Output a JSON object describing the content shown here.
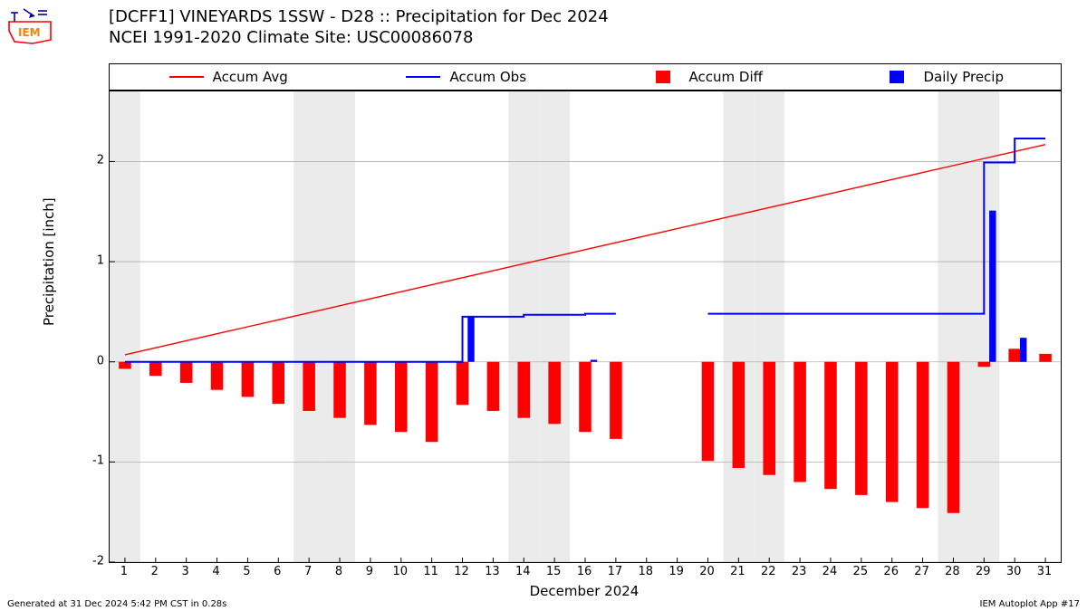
{
  "title_line1": "[DCFF1] VINEYARDS 1SSW - D28 :: Precipitation for Dec 2024",
  "title_line2": "NCEI 1991-2020 Climate Site: USC00086078",
  "y_label": "Precipitation [inch]",
  "x_label": "December 2024",
  "footer_left": "Generated at 31 Dec 2024 5:42 PM CST in 0.28s",
  "footer_right": "IEM Autoplot App #17",
  "legend": [
    {
      "label": "Accum Avg",
      "type": "line",
      "color": "#ff0000"
    },
    {
      "label": "Accum Obs",
      "type": "line",
      "color": "#0000ff"
    },
    {
      "label": "Accum Diff",
      "type": "bar",
      "color": "#ff0000"
    },
    {
      "label": "Daily Precip",
      "type": "bar",
      "color": "#0000ff"
    }
  ],
  "chart": {
    "type": "composite-bar-line",
    "plot_bg": "#ffffff",
    "weekend_band_color": "#ebebeb",
    "grid_color": "#b0b0b0",
    "axis_color": "#000000",
    "label_fontsize": 15,
    "tick_fontsize": 13,
    "title_fontsize": 18,
    "x_days": [
      1,
      2,
      3,
      4,
      5,
      6,
      7,
      8,
      9,
      10,
      11,
      12,
      13,
      14,
      15,
      16,
      17,
      18,
      19,
      20,
      21,
      22,
      23,
      24,
      25,
      26,
      27,
      28,
      29,
      30,
      31
    ],
    "weekend_days": [
      1,
      7,
      8,
      14,
      15,
      21,
      22,
      28,
      29
    ],
    "ylim": [
      -2,
      2.7
    ],
    "yticks": [
      -2,
      -1,
      0,
      1,
      2
    ],
    "accum_avg": {
      "color": "#ff0000",
      "line_width": 1.4,
      "points": [
        [
          1,
          0.07
        ],
        [
          2,
          0.14
        ],
        [
          3,
          0.21
        ],
        [
          4,
          0.28
        ],
        [
          5,
          0.35
        ],
        [
          6,
          0.42
        ],
        [
          7,
          0.49
        ],
        [
          8,
          0.56
        ],
        [
          9,
          0.63
        ],
        [
          10,
          0.7
        ],
        [
          11,
          0.77
        ],
        [
          12,
          0.84
        ],
        [
          13,
          0.91
        ],
        [
          14,
          0.98
        ],
        [
          15,
          1.05
        ],
        [
          16,
          1.12
        ],
        [
          17,
          1.19
        ],
        [
          18,
          1.26
        ],
        [
          19,
          1.33
        ],
        [
          20,
          1.4
        ],
        [
          21,
          1.47
        ],
        [
          22,
          1.54
        ],
        [
          23,
          1.61
        ],
        [
          24,
          1.68
        ],
        [
          25,
          1.75
        ],
        [
          26,
          1.82
        ],
        [
          27,
          1.89
        ],
        [
          28,
          1.96
        ],
        [
          29,
          2.03
        ],
        [
          30,
          2.1
        ],
        [
          31,
          2.17
        ]
      ]
    },
    "accum_obs": {
      "color": "#0000ff",
      "line_width": 2.0,
      "segments": [
        [
          [
            1,
            0.0
          ],
          [
            2,
            0.0
          ],
          [
            3,
            0.0
          ],
          [
            4,
            0.0
          ],
          [
            5,
            0.0
          ],
          [
            6,
            0.0
          ],
          [
            7,
            0.0
          ],
          [
            8,
            0.0
          ],
          [
            9,
            0.0
          ],
          [
            10,
            0.0
          ],
          [
            11,
            0.0
          ],
          [
            12,
            0.45
          ],
          [
            13,
            0.45
          ],
          [
            14,
            0.47
          ],
          [
            15,
            0.47
          ],
          [
            16,
            0.48
          ],
          [
            17,
            0.48
          ]
        ],
        [
          [
            20,
            0.48
          ],
          [
            21,
            0.48
          ],
          [
            22,
            0.48
          ],
          [
            23,
            0.48
          ],
          [
            24,
            0.48
          ],
          [
            25,
            0.48
          ],
          [
            26,
            0.48
          ],
          [
            27,
            0.48
          ],
          [
            28,
            0.48
          ],
          [
            29,
            1.99
          ],
          [
            30,
            2.23
          ],
          [
            31,
            2.23
          ]
        ]
      ]
    },
    "accum_diff": {
      "color": "#ff0000",
      "bar_width": 0.4,
      "values": {
        "1": -0.07,
        "2": -0.14,
        "3": -0.21,
        "4": -0.28,
        "5": -0.35,
        "6": -0.42,
        "7": -0.49,
        "8": -0.56,
        "9": -0.63,
        "10": -0.7,
        "11": -0.8,
        "12": -0.43,
        "13": -0.49,
        "14": -0.56,
        "15": -0.62,
        "16": -0.7,
        "17": -0.77,
        "20": -0.99,
        "21": -1.06,
        "22": -1.13,
        "23": -1.2,
        "24": -1.27,
        "25": -1.33,
        "26": -1.4,
        "27": -1.46,
        "28": -1.51,
        "29": -0.05,
        "30": 0.13,
        "31": 0.08
      }
    },
    "daily_precip": {
      "color": "#0000ff",
      "bar_width": 0.22,
      "values": {
        "12": 0.45,
        "16": 0.02,
        "29": 1.51,
        "30": 0.24
      }
    }
  }
}
